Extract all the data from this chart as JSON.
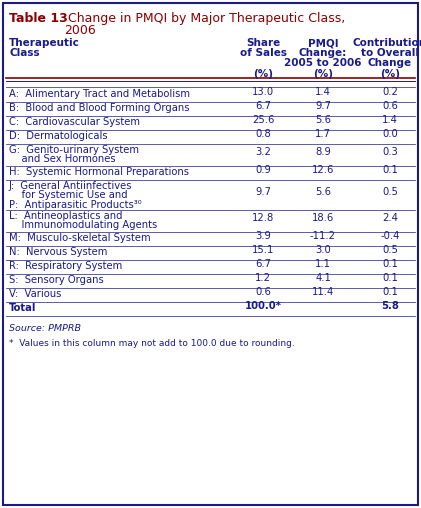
{
  "title_bold": "Table 13",
  "title_regular": "  Change in PMQI by Major Therapeutic Class,\n            2006",
  "col_headers_line1": [
    "Therapeutic",
    "Share",
    "PMQI",
    "Contribution"
  ],
  "col_headers_line2": [
    "Class",
    "of Sales",
    "Change:",
    "to Overall"
  ],
  "col_headers_line3": [
    "",
    "",
    "2005 to 2006",
    "Change"
  ],
  "col_headers_line4": [
    "",
    "(%)",
    "(%)",
    "(%)"
  ],
  "rows": [
    {
      "label": "A:  Alimentary Tract and Metabolism",
      "label2": "",
      "label3": "",
      "v1": "13.0",
      "v2": "1.4",
      "v3": "0.2"
    },
    {
      "label": "B:  Blood and Blood Forming Organs",
      "label2": "",
      "label3": "",
      "v1": "6.7",
      "v2": "9.7",
      "v3": "0.6"
    },
    {
      "label": "C:  Cardiovascular System",
      "label2": "",
      "label3": "",
      "v1": "25.6",
      "v2": "5.6",
      "v3": "1.4"
    },
    {
      "label": "D:  Dermatologicals",
      "label2": "",
      "label3": "",
      "v1": "0.8",
      "v2": "1.7",
      "v3": "0.0"
    },
    {
      "label": "G:  Genito-urinary System",
      "label2": "    and Sex Hormones",
      "label3": "",
      "v1": "3.2",
      "v2": "8.9",
      "v3": "0.3"
    },
    {
      "label": "H:  Systemic Hormonal Preparations",
      "label2": "",
      "label3": "",
      "v1": "0.9",
      "v2": "12.6",
      "v3": "0.1"
    },
    {
      "label": "J:  General Antiinfectives",
      "label2": "    for Systemic Use and",
      "label3": "P:  Antiparasitic Products³⁰",
      "v1": "9.7",
      "v2": "5.6",
      "v3": "0.5"
    },
    {
      "label": "L:  Antineoplastics and",
      "label2": "    Immunomodulating Agents",
      "label3": "",
      "v1": "12.8",
      "v2": "18.6",
      "v3": "2.4"
    },
    {
      "label": "M:  Musculo-skeletal System",
      "label2": "",
      "label3": "",
      "v1": "3.9",
      "v2": "-11.2",
      "v3": "-0.4"
    },
    {
      "label": "N:  Nervous System",
      "label2": "",
      "label3": "",
      "v1": "15.1",
      "v2": "3.0",
      "v3": "0.5"
    },
    {
      "label": "R:  Respiratory System",
      "label2": "",
      "label3": "",
      "v1": "6.7",
      "v2": "1.1",
      "v3": "0.1"
    },
    {
      "label": "S:  Sensory Organs",
      "label2": "",
      "label3": "",
      "v1": "1.2",
      "v2": "4.1",
      "v3": "0.1"
    },
    {
      "label": "V:  Various",
      "label2": "",
      "label3": "",
      "v1": "0.6",
      "v2": "11.4",
      "v3": "0.1"
    },
    {
      "label": "Total",
      "label2": "",
      "label3": "",
      "v1": "100.0*",
      "v2": "",
      "v3": "5.8",
      "bold": true
    }
  ],
  "source_text": "Source: PMPRB",
  "footnote_text": "*  Values in this column may not add to 100.0 due to rounding.",
  "title_color": "#8B0000",
  "text_color": "#1a1a8c",
  "bg_color": "#FFFFFF",
  "border_color": "#1a1a8c"
}
